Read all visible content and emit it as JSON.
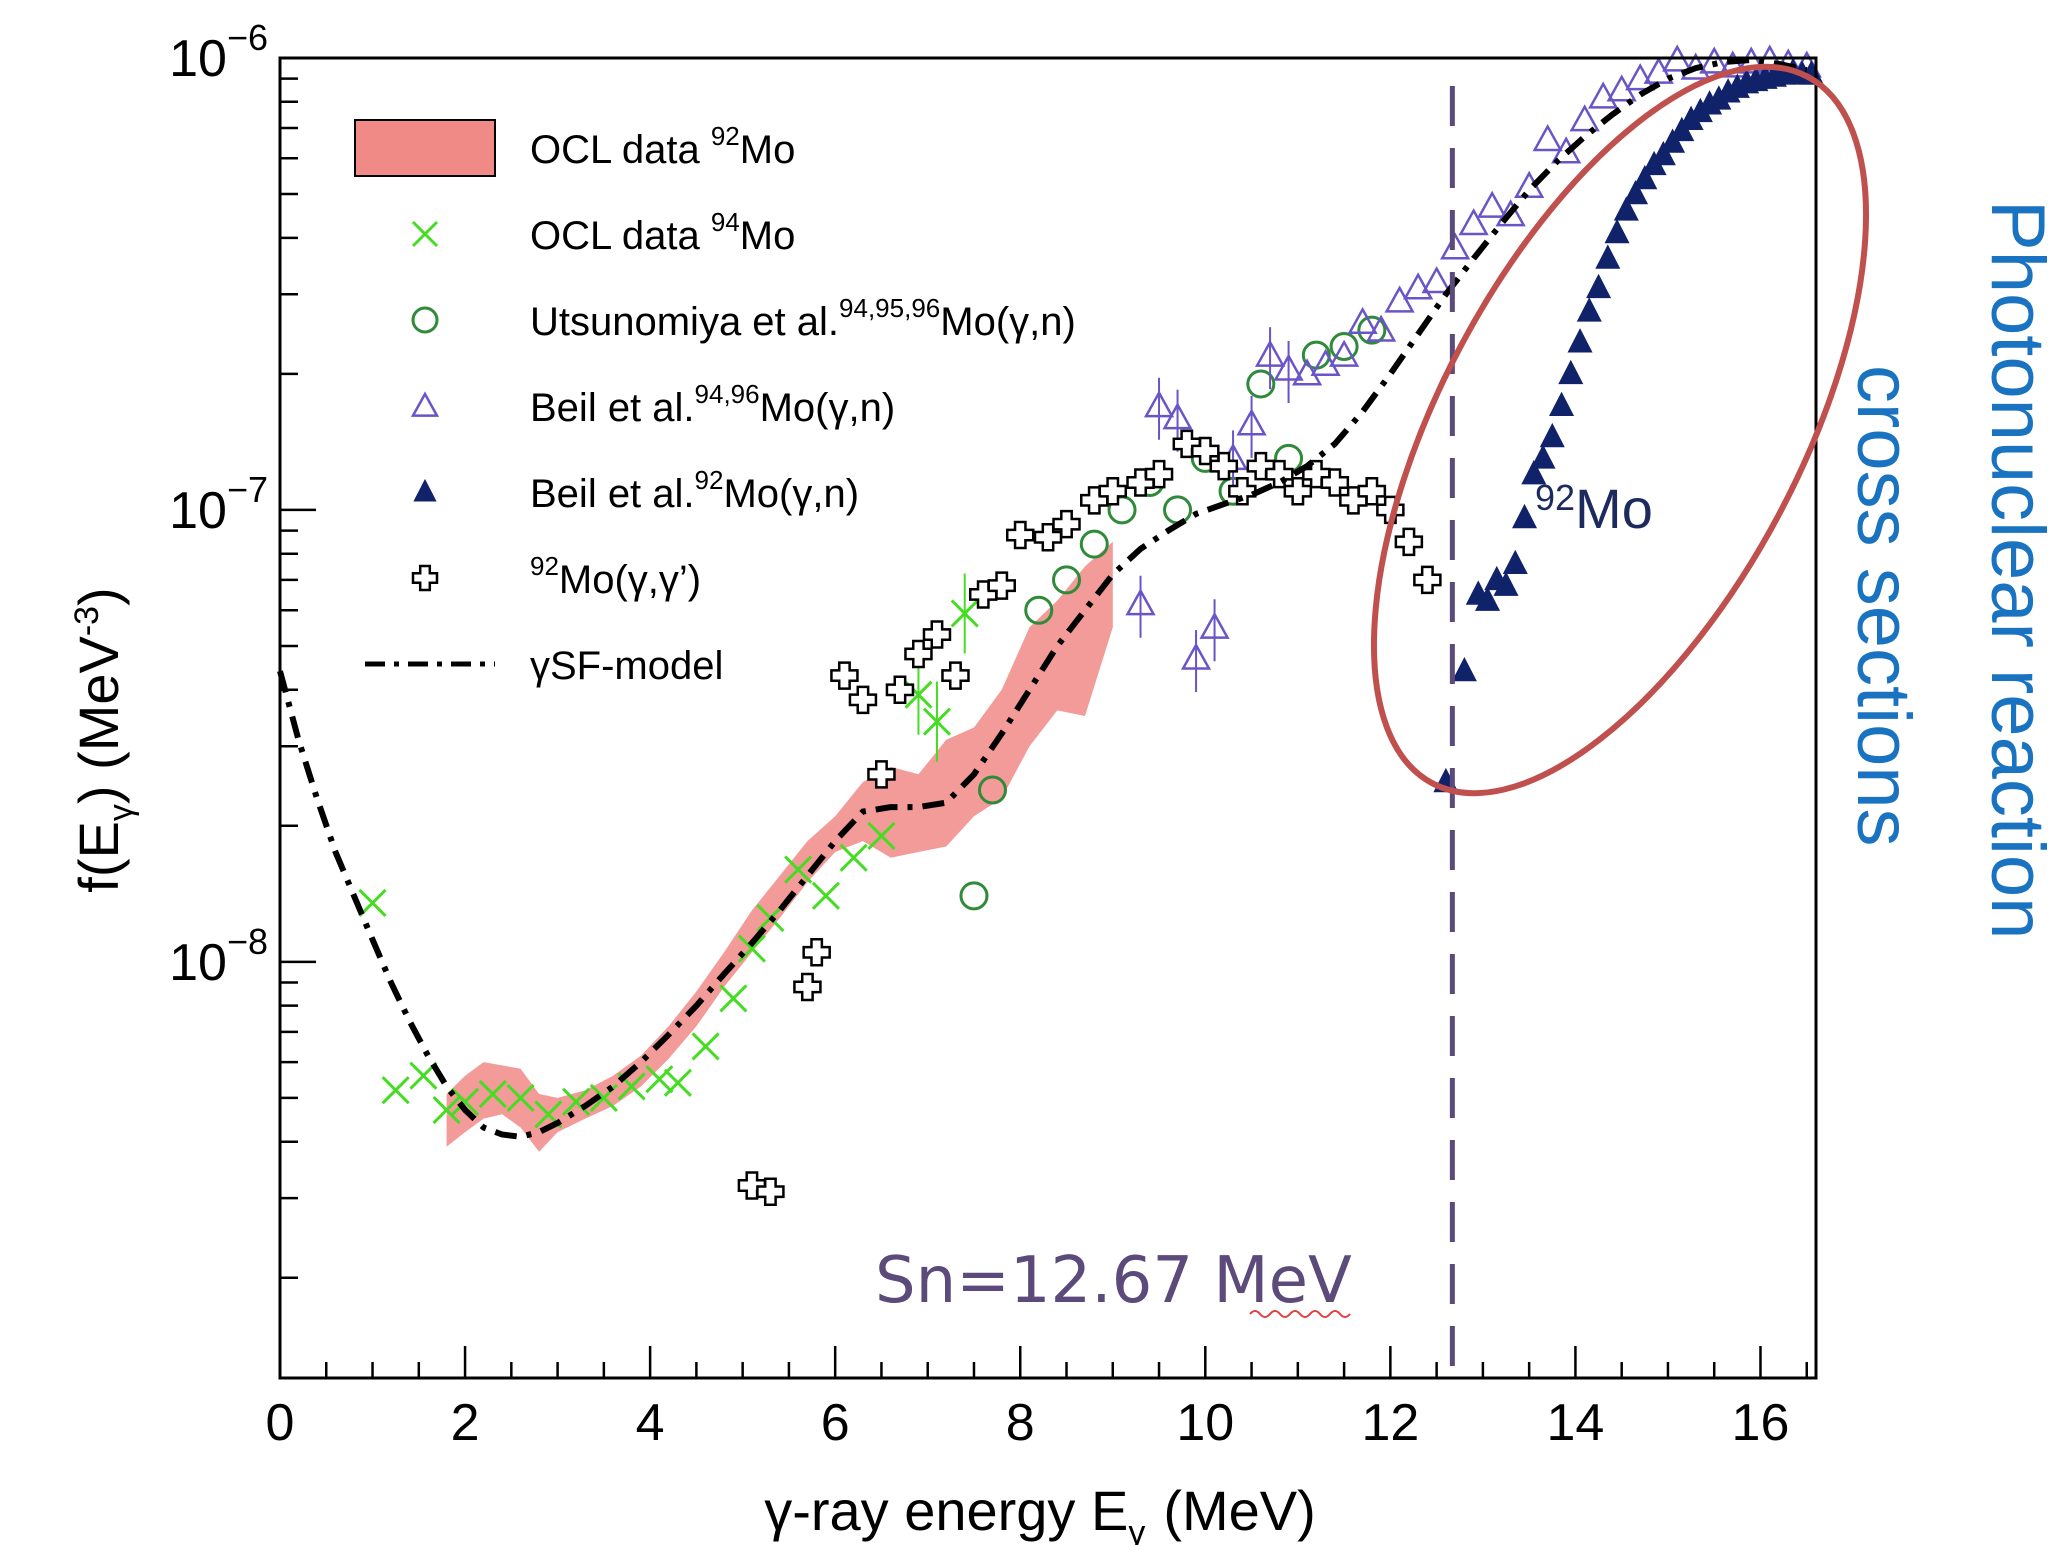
{
  "chart_data": {
    "type": "scatter",
    "xlabel": "γ-ray energy E",
    "xlabel_sub": "γ",
    "xlabel_unit": "(MeV)",
    "ylabel": "f(E",
    "ylabel_sub": "γ",
    "ylabel_unit": ") (MeV",
    "ylabel_sup": "-3",
    "ylabel_end": ")",
    "xlim": [
      0,
      16.6
    ],
    "ylim": [
      1.2e-09,
      1e-06
    ],
    "yscale": "log",
    "x_ticks": [
      "0",
      "2",
      "4",
      "6",
      "8",
      "10",
      "12",
      "14",
      "16"
    ],
    "y_ticks": [
      {
        "base": "10",
        "exp": "−6",
        "value": 1e-06
      },
      {
        "base": "10",
        "exp": "−7",
        "value": 1e-07
      },
      {
        "base": "10",
        "exp": "−8",
        "value": 1e-08
      }
    ],
    "legend_position": "top-left",
    "legend": [
      {
        "text": "OCL data ",
        "sup": "92",
        "tail": "Mo",
        "marker": "band"
      },
      {
        "text": "OCL data ",
        "sup": "94",
        "tail": "Mo",
        "marker": "x"
      },
      {
        "text": "Utsunomiya et al.",
        "sup": "94,95,96",
        "tail": "Mo(γ,n)",
        "marker": "circle"
      },
      {
        "text": "Beil et al.",
        "sup": "94,96",
        "tail": "Mo(γ,n)",
        "marker": "triangle-open"
      },
      {
        "text": "Beil et al.",
        "sup": "92",
        "tail": "Mo(γ,n)",
        "marker": "triangle-filled"
      },
      {
        "text": "",
        "sup": "92",
        "tail": "Mo(γ,γ’)",
        "marker": "cross"
      },
      {
        "text": "γSF-model",
        "sup": "",
        "tail": "",
        "marker": "dashdot"
      }
    ],
    "series": [
      {
        "name": "OCL data 92Mo",
        "style": "band",
        "x": [
          1.8,
          2.0,
          2.2,
          2.4,
          2.6,
          2.8,
          3.0,
          3.3,
          3.6,
          3.9,
          4.2,
          4.5,
          4.8,
          5.1,
          5.4,
          5.7,
          6.0,
          6.3,
          6.6,
          6.9,
          7.2,
          7.5,
          7.8,
          8.1,
          8.4,
          8.7,
          9.0
        ],
        "low": [
          3.9e-09,
          4.2e-09,
          4.5e-09,
          4.6e-09,
          4.3e-09,
          3.8e-09,
          4.2e-09,
          4.5e-09,
          4.8e-09,
          5.3e-09,
          6.1e-09,
          7.2e-09,
          8.8e-09,
          1.05e-08,
          1.25e-08,
          1.5e-08,
          1.75e-08,
          1.85e-08,
          1.7e-08,
          1.75e-08,
          1.8e-08,
          2.1e-08,
          2.3e-08,
          3e-08,
          3.6e-08,
          3.5e-08,
          5.5e-08
        ],
        "high": [
          5.1e-09,
          5.6e-09,
          6e-09,
          5.9e-09,
          5.8e-09,
          5.1e-09,
          5e-09,
          5.2e-09,
          5.6e-09,
          6.2e-09,
          7.2e-09,
          8.6e-09,
          1.05e-08,
          1.3e-08,
          1.55e-08,
          1.85e-08,
          2.1e-08,
          2.5e-08,
          2.7e-08,
          2.6e-08,
          3.1e-08,
          3.3e-08,
          4e-08,
          5.5e-08,
          6.3e-08,
          7.5e-08,
          8.5e-08
        ]
      },
      {
        "name": "OCL data 94Mo",
        "style": "x",
        "color": "#44dd22",
        "x": [
          1.0,
          1.25,
          1.55,
          1.8,
          2.0,
          2.3,
          2.6,
          2.9,
          3.2,
          3.5,
          3.8,
          4.1,
          4.3,
          4.6,
          4.9,
          5.1,
          5.3,
          5.6,
          5.9,
          6.2,
          6.5,
          6.9,
          7.1,
          7.4
        ],
        "y": [
          1.35e-08,
          5.2e-09,
          5.6e-09,
          4.7e-09,
          4.9e-09,
          5.1e-09,
          5e-09,
          4.6e-09,
          4.9e-09,
          5e-09,
          5.3e-09,
          5.5e-09,
          5.4e-09,
          6.5e-09,
          8.3e-09,
          1.07e-08,
          1.25e-08,
          1.6e-08,
          1.4e-08,
          1.7e-08,
          1.9e-08,
          3.9e-08,
          3.4e-08,
          5.9e-08
        ]
      },
      {
        "name": "Utsunomiya et al. 94,95,96Mo(γ,n)",
        "style": "circle",
        "color": "#2f8a3a",
        "x": [
          7.5,
          7.7,
          8.2,
          8.5,
          8.8,
          9.1,
          9.4,
          9.7,
          10.0,
          10.3,
          10.6,
          10.9,
          11.2,
          11.5,
          11.8
        ],
        "y": [
          1.4e-08,
          2.4e-08,
          6e-08,
          7e-08,
          8.4e-08,
          1e-07,
          1.15e-07,
          1e-07,
          1.3e-07,
          1.1e-07,
          1.9e-07,
          1.3e-07,
          2.2e-07,
          2.3e-07,
          2.5e-07
        ]
      },
      {
        "name": "Beil et al. 94,96Mo(γ,n)",
        "style": "triangle-open",
        "color": "#6a55c8",
        "x": [
          9.3,
          9.5,
          9.7,
          9.9,
          10.1,
          10.3,
          10.5,
          10.7,
          10.9,
          11.1,
          11.3,
          11.5,
          11.7,
          11.9,
          12.1,
          12.3,
          12.5,
          12.7,
          12.9,
          13.1,
          13.3,
          13.5,
          13.7,
          13.9,
          14.1,
          14.3,
          14.5,
          14.7,
          14.9,
          15.1,
          15.3,
          15.5,
          15.7,
          15.9,
          16.1,
          16.3,
          16.5
        ],
        "y": [
          6.2e-08,
          1.7e-07,
          1.6e-07,
          4.7e-08,
          5.5e-08,
          1.3e-07,
          1.55e-07,
          2.2e-07,
          2.05e-07,
          2e-07,
          2.1e-07,
          2.2e-07,
          2.6e-07,
          2.5e-07,
          2.9e-07,
          3.1e-07,
          3.2e-07,
          3.8e-07,
          4.3e-07,
          4.7e-07,
          4.5e-07,
          5.2e-07,
          6.6e-07,
          6.2e-07,
          7.3e-07,
          8.2e-07,
          8.5e-07,
          9e-07,
          9.3e-07,
          9.9e-07,
          9.5e-07,
          9.8e-07,
          9.6e-07,
          9.8e-07,
          9.9e-07,
          9.7e-07,
          9.6e-07
        ]
      },
      {
        "name": "Beil et al. 92Mo(γ,n)",
        "style": "triangle-filled",
        "color": "#10226a",
        "x": [
          12.6,
          12.8,
          12.95,
          13.05,
          13.15,
          13.25,
          13.35,
          13.45,
          13.55,
          13.65,
          13.75,
          13.85,
          13.95,
          14.05,
          14.15,
          14.25,
          14.35,
          14.45,
          14.55,
          14.65,
          14.75,
          14.85,
          14.95,
          15.05,
          15.15,
          15.25,
          15.35,
          15.45,
          15.55,
          15.65,
          15.75,
          15.85,
          15.95,
          16.05,
          16.15,
          16.25,
          16.35,
          16.45,
          16.55
        ],
        "y": [
          2.5e-08,
          4.4e-08,
          6.5e-08,
          6.3e-08,
          7e-08,
          6.8e-08,
          7.6e-08,
          9.6e-08,
          1.2e-07,
          1.3e-07,
          1.45e-07,
          1.7e-07,
          2e-07,
          2.35e-07,
          2.75e-07,
          3.1e-07,
          3.6e-07,
          4.1e-07,
          4.6e-07,
          5e-07,
          5.4e-07,
          5.8e-07,
          6.1e-07,
          6.5e-07,
          6.9e-07,
          7.3e-07,
          7.6e-07,
          7.9e-07,
          8.1e-07,
          8.4e-07,
          8.6e-07,
          8.8e-07,
          8.9e-07,
          9e-07,
          9.1e-07,
          9.2e-07,
          9.3e-07,
          9.2e-07,
          9.2e-07
        ]
      },
      {
        "name": "92Mo(γ,γ’)",
        "style": "cross",
        "color": "#000000",
        "x": [
          5.1,
          5.3,
          5.7,
          5.8,
          6.1,
          6.3,
          6.5,
          6.7,
          6.9,
          7.1,
          7.3,
          7.6,
          7.8,
          8.0,
          8.3,
          8.5,
          8.8,
          9.0,
          9.3,
          9.5,
          9.8,
          10.0,
          10.2,
          10.4,
          10.6,
          10.8,
          11.0,
          11.2,
          11.4,
          11.6,
          11.8,
          12.0,
          12.2,
          12.4
        ],
        "y": [
          3.2e-09,
          3.1e-09,
          8.8e-09,
          1.05e-08,
          4.3e-08,
          3.8e-08,
          2.6e-08,
          4e-08,
          4.8e-08,
          5.3e-08,
          4.3e-08,
          6.5e-08,
          6.8e-08,
          8.8e-08,
          8.7e-08,
          9.3e-08,
          1.05e-07,
          1.1e-07,
          1.15e-07,
          1.2e-07,
          1.4e-07,
          1.35e-07,
          1.25e-07,
          1.1e-07,
          1.25e-07,
          1.2e-07,
          1.1e-07,
          1.2e-07,
          1.15e-07,
          1.05e-07,
          1.1e-07,
          1e-07,
          8.5e-08,
          7e-08
        ]
      },
      {
        "name": "γSF-model",
        "style": "dashdot",
        "color": "#000000",
        "x": [
          0.0,
          0.2,
          0.4,
          0.6,
          0.8,
          1.0,
          1.2,
          1.4,
          1.6,
          1.8,
          2.0,
          2.2,
          2.4,
          2.6,
          2.8,
          3.0,
          3.3,
          3.6,
          3.9,
          4.2,
          4.5,
          4.8,
          5.1,
          5.4,
          5.7,
          6.0,
          6.3,
          6.6,
          6.9,
          7.2,
          7.5,
          7.8,
          8.1,
          8.4,
          8.7,
          9.0,
          9.3,
          9.6,
          9.9,
          10.2,
          10.5,
          10.8,
          11.1,
          11.4,
          11.7,
          12.0,
          12.3,
          12.6,
          12.9,
          13.2,
          13.5,
          13.8,
          14.1,
          14.4,
          14.7,
          15.0,
          15.3,
          15.6,
          15.9,
          16.2,
          16.5
        ],
        "y": [
          4.4e-08,
          3.1e-08,
          2.3e-08,
          1.75e-08,
          1.4e-08,
          1.12e-08,
          9e-09,
          7.4e-09,
          6.2e-09,
          5.3e-09,
          4.7e-09,
          4.3e-09,
          4.15e-09,
          4.1e-09,
          4.2e-09,
          4.4e-09,
          4.8e-09,
          5.3e-09,
          6e-09,
          6.9e-09,
          8e-09,
          9.4e-09,
          1.1e-08,
          1.3e-08,
          1.55e-08,
          1.85e-08,
          2.15e-08,
          2.2e-08,
          2.2e-08,
          2.25e-08,
          2.6e-08,
          3.2e-08,
          4e-08,
          5e-08,
          6e-08,
          7.2e-08,
          8.2e-08,
          9e-08,
          9.8e-08,
          1.03e-07,
          1.08e-07,
          1.15e-07,
          1.25e-07,
          1.4e-07,
          1.65e-07,
          2e-07,
          2.45e-07,
          3e-07,
          3.6e-07,
          4.3e-07,
          5.1e-07,
          5.9e-07,
          6.7e-07,
          7.5e-07,
          8.3e-07,
          9e-07,
          9.5e-07,
          9.8e-07,
          9.9e-07,
          9.7e-07,
          9.4e-07
        ]
      }
    ],
    "annotations": {
      "sn_line_x": 12.67,
      "sn_label": "Sn=12.67 MeV",
      "mo_label_sup": "92",
      "mo_label": "Mo",
      "side_line1": "Photonuclear reaction",
      "side_line2": "cross sections"
    },
    "colors": {
      "band": "#f08a86",
      "ocl94": "#44dd22",
      "utsunomiya": "#2f8a3a",
      "beil9496": "#6a55c8",
      "beil92": "#10226a",
      "sn_line": "#5b4a7a",
      "ellipse": "#c0504d",
      "side_text": "#1a73c0"
    }
  }
}
